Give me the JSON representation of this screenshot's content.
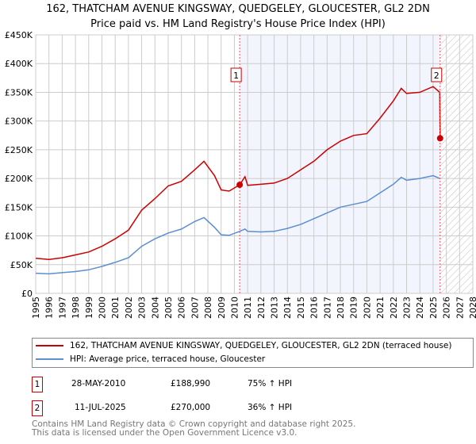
{
  "chart_data": {
    "type": "line",
    "title": "162, THATCHAM AVENUE KINGSWAY, QUEDGELEY, GLOUCESTER, GL2 2DN",
    "subtitle": "Price paid vs. HM Land Registry's House Price Index (HPI)",
    "xlim": [
      1995,
      2028
    ],
    "ylim": [
      0,
      450000
    ],
    "x_ticks": [
      "1995",
      "1996",
      "1997",
      "1998",
      "1999",
      "2000",
      "2001",
      "2002",
      "2003",
      "2004",
      "2005",
      "2006",
      "2007",
      "2008",
      "2009",
      "2010",
      "2011",
      "2012",
      "2013",
      "2014",
      "2015",
      "2016",
      "2017",
      "2018",
      "2019",
      "2020",
      "2021",
      "2022",
      "2023",
      "2024",
      "2025",
      "2026",
      "2027",
      "2028"
    ],
    "y_ticks": [
      {
        "v": 0,
        "l": "£0"
      },
      {
        "v": 50000,
        "l": "£50K"
      },
      {
        "v": 100000,
        "l": "£100K"
      },
      {
        "v": 150000,
        "l": "£150K"
      },
      {
        "v": 200000,
        "l": "£200K"
      },
      {
        "v": 250000,
        "l": "£250K"
      },
      {
        "v": 300000,
        "l": "£300K"
      },
      {
        "v": 350000,
        "l": "£350K"
      },
      {
        "v": 400000,
        "l": "£400K"
      },
      {
        "v": 450000,
        "l": "£450K"
      }
    ],
    "grid": true,
    "series": [
      {
        "name": "162, THATCHAM AVENUE KINGSWAY, QUEDGELEY, GLOUCESTER, GL2 2DN (terraced house)",
        "color": "#cc0000",
        "x": [
          1995,
          1996,
          1997,
          1998,
          1999,
          2000,
          2001,
          2002,
          2003,
          2004,
          2005,
          2006,
          2007,
          2007.7,
          2008.5,
          2009,
          2009.6,
          2010.4,
          2010.8,
          2011,
          2012,
          2013,
          2014,
          2015,
          2016,
          2017,
          2018,
          2019,
          2020,
          2021,
          2022,
          2022.6,
          2023,
          2024,
          2025,
          2025.5,
          2025.53
        ],
        "y": [
          61000,
          59000,
          62000,
          67000,
          72000,
          82000,
          95000,
          110000,
          145000,
          165000,
          187000,
          195000,
          215000,
          230000,
          205000,
          180000,
          178000,
          189000,
          203000,
          188000,
          190000,
          192000,
          200000,
          215000,
          230000,
          250000,
          265000,
          275000,
          278000,
          305000,
          335000,
          357000,
          348000,
          350000,
          360000,
          350000,
          270000
        ]
      },
      {
        "name": "HPI: Average price, terraced house, Gloucester",
        "color": "#5b8fd0",
        "x": [
          1995,
          1996,
          1997,
          1998,
          1999,
          2000,
          2001,
          2002,
          2003,
          2004,
          2005,
          2006,
          2007,
          2007.7,
          2008.5,
          2009,
          2009.6,
          2010.4,
          2010.8,
          2011,
          2012,
          2013,
          2014,
          2015,
          2016,
          2017,
          2018,
          2019,
          2020,
          2021,
          2022,
          2022.6,
          2023,
          2024,
          2025,
          2025.5
        ],
        "y": [
          35000,
          34000,
          36000,
          38000,
          41000,
          47000,
          54000,
          62000,
          82000,
          95000,
          105000,
          112000,
          125000,
          132000,
          115000,
          102000,
          101000,
          108000,
          112000,
          108000,
          107000,
          108000,
          113000,
          120000,
          130000,
          140000,
          150000,
          155000,
          160000,
          175000,
          190000,
          202000,
          197000,
          200000,
          205000,
          200000
        ]
      }
    ],
    "annotations": [
      {
        "label": "1",
        "x": 2010.4,
        "y": 188990
      },
      {
        "label": "2",
        "x": 2025.53,
        "y": 270000
      }
    ],
    "shaded_region": [
      2010.4,
      2025.53
    ],
    "hatched_region": [
      2025.53,
      2028
    ],
    "legend_placement": "below"
  },
  "legend": {
    "red": "162, THATCHAM AVENUE KINGSWAY, QUEDGELEY, GLOUCESTER, GL2 2DN (terraced house)",
    "blue": "HPI: Average price, terraced house, Gloucester"
  },
  "sales": [
    {
      "num": "1",
      "date": "28-MAY-2010",
      "price": "£188,990",
      "hpi": "75% ↑ HPI"
    },
    {
      "num": "2",
      "date": "11-JUL-2025",
      "price": "£270,000",
      "hpi": "36% ↑ HPI"
    }
  ],
  "footer": {
    "line1": "Contains HM Land Registry data © Crown copyright and database right 2025.",
    "line2": "This data is licensed under the Open Government Licence v3.0."
  }
}
